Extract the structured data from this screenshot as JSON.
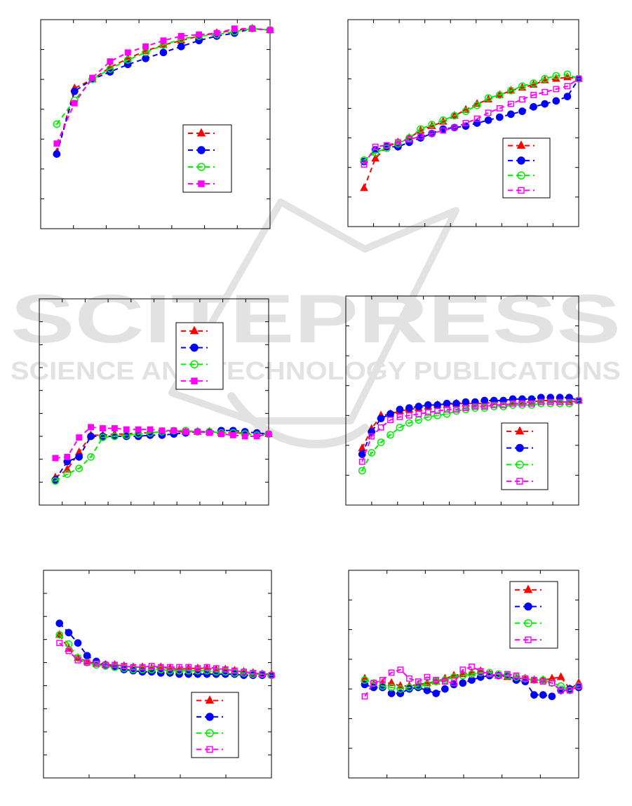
{
  "watermark": {
    "title": "SCITEPRESS",
    "subtitle": "SCIENCE AND TECHNOLOGY PUBLICATIONS"
  },
  "colors": {
    "red": "#ff0000",
    "blue": "#0000ff",
    "green": "#00ee00",
    "magenta": "#ff00ff"
  },
  "chart_data": [
    {
      "type": "line",
      "x": [
        1,
        2,
        3,
        4,
        5,
        6,
        7,
        8,
        9,
        10,
        11,
        12,
        13
      ],
      "xlim": [
        0,
        13
      ],
      "ylim": [
        0,
        7
      ],
      "grid": false,
      "legend": "right",
      "series": [
        {
          "marker": "triangle",
          "color": "#ff0000",
          "fill": true,
          "values": [
            2.55,
            4.7,
            5.0,
            5.4,
            5.7,
            5.95,
            6.15,
            6.3,
            6.45,
            6.55,
            6.65,
            6.7,
            6.65
          ]
        },
        {
          "marker": "circle",
          "color": "#0000ff",
          "fill": true,
          "values": [
            2.5,
            4.6,
            5.0,
            5.25,
            5.5,
            5.7,
            5.9,
            6.1,
            6.3,
            6.45,
            6.55,
            6.7,
            6.65
          ]
        },
        {
          "marker": "circle",
          "color": "#00ee00",
          "fill": false,
          "values": [
            3.5,
            4.3,
            5.0,
            5.35,
            5.65,
            5.9,
            6.15,
            6.35,
            6.45,
            6.5,
            6.6,
            6.7,
            6.65
          ]
        },
        {
          "marker": "square",
          "color": "#ff00ff",
          "fill": true,
          "values": [
            2.85,
            4.2,
            5.05,
            5.6,
            5.9,
            6.1,
            6.3,
            6.45,
            6.5,
            6.55,
            6.7,
            6.7,
            6.65
          ]
        }
      ]
    },
    {
      "type": "line",
      "x": [
        1,
        2,
        3,
        4,
        5,
        6,
        7,
        8,
        9,
        10,
        11,
        12,
        13,
        14,
        15,
        16,
        17,
        18,
        19,
        20
      ],
      "xlim": [
        0,
        20
      ],
      "ylim": [
        0,
        7
      ],
      "grid": false,
      "legend": "right",
      "series": [
        {
          "marker": "triangle",
          "color": "#ff0000",
          "fill": true,
          "values": [
            1.3,
            2.3,
            2.7,
            2.85,
            3.0,
            3.25,
            3.4,
            3.55,
            3.75,
            3.95,
            4.15,
            4.3,
            4.45,
            4.6,
            4.7,
            4.8,
            4.95,
            5.0,
            5.05,
            5.0
          ]
        },
        {
          "marker": "circle",
          "color": "#0000ff",
          "fill": true,
          "values": [
            2.2,
            2.6,
            2.7,
            2.7,
            2.85,
            3.0,
            3.15,
            3.3,
            3.35,
            3.4,
            3.5,
            3.6,
            3.7,
            3.8,
            3.9,
            4.05,
            4.15,
            4.25,
            4.4,
            5.0
          ]
        },
        {
          "marker": "circle",
          "color": "#00ee00",
          "fill": false,
          "values": [
            2.25,
            2.5,
            2.65,
            2.8,
            3.0,
            3.3,
            3.45,
            3.6,
            3.75,
            3.9,
            4.1,
            4.35,
            4.45,
            4.6,
            4.75,
            4.85,
            5.0,
            5.1,
            5.15,
            5.0
          ]
        },
        {
          "marker": "square",
          "color": "#ff00ff",
          "fill": false,
          "values": [
            2.1,
            2.7,
            2.75,
            2.85,
            2.95,
            3.05,
            3.15,
            3.25,
            3.35,
            3.5,
            3.65,
            3.85,
            4.0,
            4.15,
            4.3,
            4.45,
            4.55,
            4.65,
            4.75,
            5.0
          ]
        }
      ]
    },
    {
      "type": "line",
      "x": [
        1,
        2,
        3,
        4,
        5,
        6,
        7,
        8,
        9,
        10,
        11,
        12,
        13,
        14,
        15,
        16,
        17,
        18,
        19
      ],
      "xlim": [
        0,
        19
      ],
      "ylim": [
        0,
        9
      ],
      "grid": false,
      "legend": "top-right",
      "series": [
        {
          "marker": "triangle",
          "color": "#ff0000",
          "fill": true,
          "values": [
            1.2,
            1.55,
            2.3,
            3.05,
            3.05,
            3.1,
            3.1,
            3.15,
            3.15,
            3.2,
            3.2,
            3.2,
            3.2,
            3.2,
            3.15,
            3.15,
            3.15,
            3.1,
            3.1
          ]
        },
        {
          "marker": "circle",
          "color": "#0000ff",
          "fill": true,
          "values": [
            1.1,
            1.9,
            2.1,
            3.0,
            3.0,
            3.0,
            3.0,
            3.0,
            3.05,
            3.05,
            3.1,
            3.15,
            3.2,
            3.2,
            3.25,
            3.25,
            3.2,
            3.15,
            3.1
          ]
        },
        {
          "marker": "circle",
          "color": "#00ee00",
          "fill": false,
          "values": [
            1.05,
            1.35,
            1.6,
            2.1,
            2.95,
            3.0,
            3.05,
            3.1,
            3.15,
            3.2,
            3.25,
            3.25,
            3.2,
            3.2,
            3.15,
            3.15,
            3.1,
            3.05,
            3.1
          ]
        },
        {
          "marker": "square",
          "color": "#ff00ff",
          "fill": true,
          "values": [
            2.05,
            2.1,
            2.95,
            3.4,
            3.35,
            3.35,
            3.3,
            3.3,
            3.3,
            3.25,
            3.25,
            3.2,
            3.2,
            3.15,
            3.1,
            3.05,
            3.0,
            3.0,
            3.1
          ]
        }
      ]
    },
    {
      "type": "line",
      "x": [
        1,
        2,
        3,
        4,
        5,
        6,
        7,
        8,
        9,
        10,
        11,
        12,
        13,
        14,
        15,
        16,
        17,
        18,
        19,
        20,
        21,
        22,
        23,
        24
      ],
      "xlim": [
        0,
        24
      ],
      "ylim": [
        0,
        7
      ],
      "grid": false,
      "legend": "right",
      "series": [
        {
          "marker": "triangle",
          "color": "#ff0000",
          "fill": true,
          "values": [
            1.9,
            2.55,
            3.0,
            3.05,
            3.15,
            3.2,
            3.25,
            3.3,
            3.35,
            3.35,
            3.4,
            3.4,
            3.4,
            3.4,
            3.45,
            3.45,
            3.45,
            3.45,
            3.45,
            3.5,
            3.5,
            3.45,
            3.45,
            3.5
          ]
        },
        {
          "marker": "circle",
          "color": "#0000ff",
          "fill": true,
          "values": [
            1.7,
            2.45,
            2.9,
            3.05,
            3.2,
            3.25,
            3.3,
            3.35,
            3.35,
            3.4,
            3.4,
            3.45,
            3.45,
            3.5,
            3.5,
            3.5,
            3.55,
            3.55,
            3.55,
            3.6,
            3.6,
            3.6,
            3.6,
            3.5
          ]
        },
        {
          "marker": "circle",
          "color": "#00ee00",
          "fill": false,
          "values": [
            1.15,
            1.75,
            2.1,
            2.35,
            2.6,
            2.75,
            2.85,
            2.95,
            3.0,
            3.05,
            3.15,
            3.2,
            3.25,
            3.25,
            3.3,
            3.3,
            3.35,
            3.35,
            3.35,
            3.4,
            3.4,
            3.4,
            3.4,
            3.5
          ]
        },
        {
          "marker": "square",
          "color": "#ff00ff",
          "fill": false,
          "values": [
            1.45,
            2.3,
            2.6,
            2.85,
            2.95,
            3.0,
            3.05,
            3.1,
            3.15,
            3.2,
            3.2,
            3.25,
            3.3,
            3.3,
            3.35,
            3.35,
            3.4,
            3.4,
            3.4,
            3.45,
            3.45,
            3.45,
            3.45,
            3.5
          ]
        }
      ]
    },
    {
      "type": "line",
      "x": [
        1,
        2,
        3,
        4,
        5,
        6,
        7,
        8,
        9,
        10,
        11,
        12,
        13,
        14,
        15,
        16,
        17,
        18,
        19,
        20,
        21,
        22,
        23,
        24
      ],
      "xlim": [
        0,
        24
      ],
      "ylim": [
        0,
        9
      ],
      "grid": false,
      "legend": "bottom-right",
      "series": [
        {
          "marker": "triangle",
          "color": "#ff0000",
          "fill": true,
          "values": [
            6.2,
            5.6,
            5.2,
            5.05,
            4.95,
            4.9,
            4.9,
            4.85,
            4.8,
            4.8,
            4.75,
            4.8,
            4.75,
            4.7,
            4.75,
            4.75,
            4.75,
            4.7,
            4.7,
            4.65,
            4.6,
            4.55,
            4.5,
            4.5
          ]
        },
        {
          "marker": "circle",
          "color": "#0000ff",
          "fill": true,
          "values": [
            6.7,
            6.3,
            5.85,
            5.3,
            5.05,
            4.9,
            4.8,
            4.7,
            4.65,
            4.6,
            4.6,
            4.55,
            4.55,
            4.5,
            4.5,
            4.5,
            4.5,
            4.5,
            4.5,
            4.5,
            4.45,
            4.45,
            4.45,
            4.45
          ]
        },
        {
          "marker": "circle",
          "color": "#00ee00",
          "fill": false,
          "values": [
            6.2,
            5.8,
            5.2,
            5.0,
            4.9,
            4.85,
            4.8,
            4.75,
            4.7,
            4.7,
            4.7,
            4.7,
            4.65,
            4.65,
            4.65,
            4.65,
            4.65,
            4.6,
            4.6,
            4.55,
            4.55,
            4.5,
            4.5,
            4.45
          ]
        },
        {
          "marker": "square",
          "color": "#ff00ff",
          "fill": false,
          "values": [
            5.85,
            5.5,
            5.1,
            5.0,
            4.95,
            4.9,
            4.9,
            4.85,
            4.8,
            4.8,
            4.85,
            4.8,
            4.8,
            4.8,
            4.8,
            4.75,
            4.8,
            4.75,
            4.7,
            4.65,
            4.6,
            4.55,
            4.5,
            4.45
          ]
        }
      ]
    },
    {
      "type": "line",
      "x": [
        1,
        2,
        3,
        4,
        5,
        6,
        7,
        8,
        9,
        10,
        11,
        12,
        13,
        14,
        15,
        16,
        17,
        18,
        19,
        20,
        21,
        22,
        23,
        24,
        25
      ],
      "xlim": [
        0,
        25
      ],
      "ylim": [
        0,
        7
      ],
      "grid": false,
      "legend": "top-right",
      "series": [
        {
          "marker": "triangle",
          "color": "#ff0000",
          "fill": true,
          "values": [
            3.35,
            3.15,
            3.2,
            3.2,
            3.1,
            3.1,
            3.15,
            3.2,
            3.25,
            3.35,
            3.45,
            3.5,
            3.55,
            3.6,
            3.5,
            3.45,
            3.4,
            3.35,
            3.35,
            3.3,
            3.3,
            3.35,
            3.4,
            3.0,
            3.2
          ]
        },
        {
          "marker": "circle",
          "color": "#0000ff",
          "fill": true,
          "values": [
            3.15,
            3.05,
            3.05,
            2.85,
            2.85,
            3.0,
            3.05,
            2.95,
            2.85,
            3.0,
            3.15,
            3.2,
            3.3,
            3.4,
            3.45,
            3.45,
            3.45,
            3.3,
            3.25,
            2.8,
            2.8,
            2.75,
            2.95,
            3.0,
            3.05
          ]
        },
        {
          "marker": "circle",
          "color": "#00ee00",
          "fill": false,
          "values": [
            3.3,
            3.2,
            3.1,
            3.05,
            3.0,
            3.05,
            3.1,
            3.15,
            3.25,
            3.3,
            3.4,
            3.45,
            3.5,
            3.55,
            3.55,
            3.5,
            3.45,
            3.4,
            3.35,
            3.3,
            3.3,
            3.2,
            3.1,
            2.95,
            3.1
          ]
        },
        {
          "marker": "square",
          "color": "#ff00ff",
          "fill": false,
          "values": [
            2.75,
            3.2,
            3.3,
            3.55,
            3.65,
            3.35,
            3.25,
            3.4,
            3.3,
            3.25,
            3.2,
            3.65,
            3.75,
            3.6,
            3.5,
            3.45,
            3.5,
            3.45,
            3.35,
            3.3,
            3.25,
            3.2,
            2.95,
            2.95,
            3.1
          ]
        }
      ]
    }
  ]
}
